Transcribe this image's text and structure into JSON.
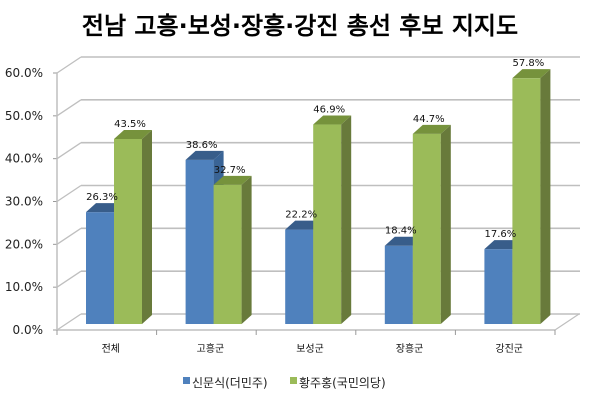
{
  "chart_data": {
    "type": "bar",
    "title": "전남 고흥·보성·장흥·강진 총선 후보 지지도",
    "categories": [
      "전체",
      "고흥군",
      "보성군",
      "장흥군",
      "강진군"
    ],
    "series": [
      {
        "name": "신문식(더민주)",
        "values": [
          26.3,
          38.6,
          22.2,
          18.4,
          17.6
        ],
        "labels": [
          "26.3%",
          "38.6%",
          "22.2%",
          "18.4%",
          "17.6%"
        ],
        "color": "#4F81BD",
        "top_color": "#385D8A",
        "side_color": "#3A6496"
      },
      {
        "name": "황주홍(국민의당)",
        "values": [
          43.5,
          32.7,
          46.9,
          44.7,
          57.8
        ],
        "labels": [
          "43.5%",
          "32.7%",
          "46.9%",
          "44.7%",
          "57.8%"
        ],
        "color": "#9BBB59",
        "top_color": "#76923C",
        "side_color": "#687A3B"
      }
    ],
    "xlabel": "",
    "ylabel": "",
    "ylim": [
      0,
      60
    ],
    "yticks": [
      "0.0%",
      "10.0%",
      "20.0%",
      "30.0%",
      "40.0%",
      "50.0%",
      "60.0%"
    ],
    "grid": true,
    "legend_position": "bottom",
    "style": "3d-clustered-column"
  }
}
